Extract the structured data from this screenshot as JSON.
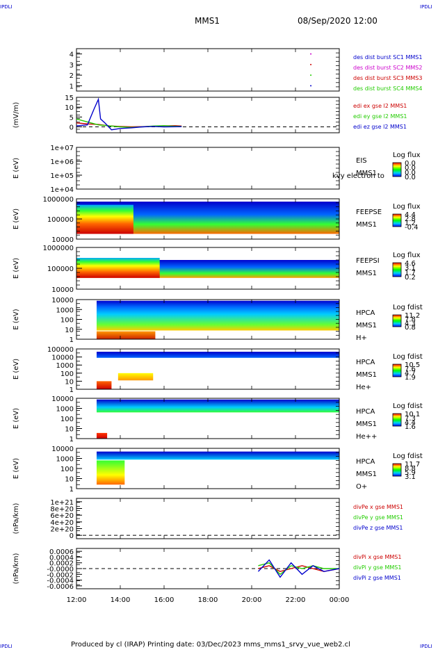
{
  "header": {
    "corner_label": "IPDLI",
    "spacecraft": "MMS1",
    "date": "08/Sep/2020 12:00"
  },
  "footer": {
    "text": "Produced by cl (IRAP)   Printing date: 03/Dec/2023   mms_mms1_srvy_vue_web2.cl"
  },
  "colors": {
    "red": "#cc0000",
    "green": "#22cc00",
    "blue": "#0000cc",
    "magenta": "#cc00cc",
    "darkblue": "#000099"
  },
  "chart_data": [
    {
      "type": "scatter",
      "panel": "des_dist_burst",
      "x_axis": {
        "range": [
          "12:00",
          "00:00"
        ],
        "ticks": [
          "12:00",
          "14:00",
          "16:00",
          "18:00",
          "20:00",
          "22:00",
          "00:00"
        ]
      },
      "ylim": [
        0.5,
        4.5
      ],
      "yticks": [
        "1",
        "2",
        "3",
        "4"
      ],
      "legend": [
        "des dist burst SC1 MMS1",
        "des dist burst SC2 MMS2",
        "des dist burst SC3 MMS3",
        "des dist burst SC4 MMS4"
      ],
      "series": [
        {
          "name": "des dist burst SC1 MMS1",
          "x": [
            22.7
          ],
          "y": [
            1
          ]
        },
        {
          "name": "des dist burst SC2 MMS2",
          "x": [
            22.7
          ],
          "y": [
            4
          ]
        },
        {
          "name": "des dist burst SC3 MMS3",
          "x": [
            22.7
          ],
          "y": [
            3
          ]
        },
        {
          "name": "des dist burst SC4 MMS4",
          "x": [
            22.7
          ],
          "y": [
            2
          ]
        }
      ]
    },
    {
      "type": "line",
      "panel": "edi_e",
      "ylabel": "(mV/m)",
      "ylim": [
        -3,
        15
      ],
      "yticks": [
        "0",
        "5",
        "10",
        "15"
      ],
      "legend": [
        "edi ex gse l2 MMS1",
        "edi ey gse l2 MMS1",
        "edi ez gse l2 MMS1"
      ],
      "zero_line": true,
      "series": [
        {
          "name": "edi ex gse l2 MMS1",
          "x": [
            12.0,
            12.5,
            13.0,
            13.5,
            14.0,
            14.5,
            15.0,
            15.5,
            16.0,
            16.5,
            16.8
          ],
          "y": [
            2.0,
            1.5,
            1.2,
            0.5,
            0.2,
            0.0,
            0.1,
            0.3,
            0.5,
            0.6,
            0.4
          ]
        },
        {
          "name": "edi ey gse l2 MMS1",
          "x": [
            12.0,
            12.5,
            13.0,
            13.5,
            14.0,
            14.5,
            15.0,
            15.5,
            16.0,
            16.5,
            16.8
          ],
          "y": [
            4.0,
            2.5,
            1.0,
            0.5,
            0.0,
            -0.3,
            0.0,
            0.4,
            0.6,
            0.3,
            0.2
          ]
        },
        {
          "name": "edi ez gse l2 MMS1",
          "x": [
            12.0,
            12.5,
            12.8,
            13.0,
            13.1,
            13.3,
            13.6,
            14.0,
            14.5,
            15.0,
            15.5,
            16.0,
            16.8
          ],
          "y": [
            0.5,
            1.0,
            9.0,
            14.0,
            4.0,
            2.0,
            -1.5,
            -0.8,
            -0.5,
            0.0,
            0.2,
            0.0,
            0.1
          ]
        }
      ]
    },
    {
      "type": "heatmap",
      "panel": "EIS",
      "ylabel": "E (eV)",
      "yticks": [
        "1e+04",
        "1e+05",
        "1e+06",
        "1e+07"
      ],
      "side_labels": [
        "EIS",
        "MMS1"
      ],
      "overlay_text": "kvy electron to",
      "colorbar": {
        "title": "Log flux",
        "ticks": [
          "0.0",
          "0.0",
          "0.0",
          "0.0"
        ]
      },
      "values": []
    },
    {
      "type": "heatmap",
      "panel": "FEEPSE",
      "ylabel": "E (eV)",
      "yticks": [
        "10000",
        "100000",
        "1000000"
      ],
      "side_labels": [
        "FEEPSE",
        "MMS1"
      ],
      "colorbar": {
        "title": "Log flux",
        "ticks": [
          "4.4",
          "2.8",
          "1.2",
          "-0.4"
        ]
      },
      "coverage": [
        "12:00",
        "00:00"
      ]
    },
    {
      "type": "heatmap",
      "panel": "FEEPSI",
      "ylabel": "E (eV)",
      "yticks": [
        "10000",
        "100000",
        "1000000"
      ],
      "side_labels": [
        "FEEPSI",
        "MMS1"
      ],
      "colorbar": {
        "title": "Log flux",
        "ticks": [
          "4.6",
          "3.1",
          "1.7",
          "0.2"
        ]
      },
      "coverage": [
        "12:00",
        "00:00"
      ]
    },
    {
      "type": "heatmap",
      "panel": "HPCA H+",
      "ylabel": "E (eV)",
      "yticks": [
        "1",
        "10",
        "100",
        "1000",
        "10000"
      ],
      "side_labels": [
        "HPCA",
        "MMS1",
        "H+"
      ],
      "colorbar": {
        "title": "Log fdist",
        "ticks": [
          "11.2",
          "7.8",
          "4.3",
          "0.8"
        ]
      },
      "coverage": [
        "12:55",
        "00:00"
      ]
    },
    {
      "type": "heatmap",
      "panel": "HPCA He+",
      "ylabel": "E (eV)",
      "yticks": [
        "1",
        "10",
        "100",
        "1000",
        "10000",
        "100000"
      ],
      "side_labels": [
        "HPCA",
        "MMS1",
        "He+"
      ],
      "colorbar": {
        "title": "Log fdist",
        "ticks": [
          "10.5",
          "7.6",
          "4.7",
          "1.9"
        ]
      },
      "coverage": [
        "12:55",
        "00:00"
      ]
    },
    {
      "type": "heatmap",
      "panel": "HPCA He++",
      "ylabel": "E (eV)",
      "yticks": [
        "1",
        "10",
        "100",
        "1000",
        "10000"
      ],
      "side_labels": [
        "HPCA",
        "MMS1",
        "He++"
      ],
      "colorbar": {
        "title": "Log fdist",
        "ticks": [
          "10.1",
          "7.3",
          "4.4",
          "1.6"
        ]
      },
      "coverage": [
        "12:55",
        "00:00"
      ]
    },
    {
      "type": "heatmap",
      "panel": "HPCA O+",
      "ylabel": "E (eV)",
      "yticks": [
        "1",
        "10",
        "100",
        "1000",
        "10000"
      ],
      "side_labels": [
        "HPCA",
        "MMS1",
        "O+"
      ],
      "colorbar": {
        "title": "Log fdist",
        "ticks": [
          "11.7",
          "8.8",
          "5.9",
          "3.1"
        ]
      },
      "coverage": [
        "12:55",
        "00:00"
      ]
    },
    {
      "type": "line",
      "panel": "divPe",
      "ylabel": "(nPa/km)",
      "ylim": [
        -1e+20,
        1.1e+21
      ],
      "yticks": [
        "0",
        "2e+20",
        "4e+20",
        "6e+20",
        "8e+20",
        "1e+21"
      ],
      "legend": [
        "divPe x gse MMS1",
        "divPe y gse MMS1",
        "divPe z gse MMS1"
      ],
      "zero_line": true,
      "series": []
    },
    {
      "type": "line",
      "panel": "divPi",
      "ylabel": "(nPa/km)",
      "ylim": [
        -0.0007,
        0.0007
      ],
      "yticks": [
        "-0.0006",
        "-0.0004",
        "-0.0002",
        "-0.0000",
        "0.0002",
        "0.0004",
        "0.0006"
      ],
      "legend": [
        "divPi x gse MMS1",
        "divPi y gse MMS1",
        "divPi z gse MMS1"
      ],
      "zero_line": true,
      "series": [
        {
          "name": "divPi x gse MMS1",
          "x": [
            20.3,
            20.8,
            21.3,
            21.8,
            22.3,
            22.8,
            23.3,
            24.0
          ],
          "y": [
            0.0,
            0.0001,
            -0.0001,
            0.0,
            0.0001,
            0.0,
            -0.0001,
            0.0
          ]
        },
        {
          "name": "divPi y gse MMS1",
          "x": [
            20.3,
            20.8,
            21.3,
            21.8,
            22.3,
            22.8,
            23.3,
            24.0
          ],
          "y": [
            0.0001,
            0.0002,
            -0.0002,
            0.0001,
            0.0,
            0.0001,
            0.0,
            0.0
          ]
        },
        {
          "name": "divPi z gse MMS1",
          "x": [
            20.3,
            20.8,
            21.3,
            21.8,
            22.3,
            22.8,
            23.3,
            24.0
          ],
          "y": [
            -0.0001,
            0.0003,
            -0.0003,
            0.0002,
            -0.0002,
            0.0001,
            -0.0001,
            0.0
          ]
        }
      ]
    }
  ]
}
